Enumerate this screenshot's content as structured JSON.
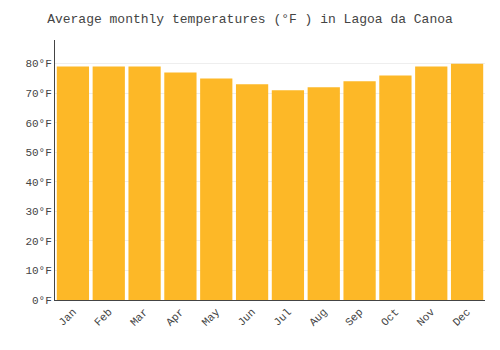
{
  "chart_data": {
    "type": "bar",
    "title": "Average monthly temperatures (°F ) in Lagoa da Canoa",
    "categories": [
      "Jan",
      "Feb",
      "Mar",
      "Apr",
      "May",
      "Jun",
      "Jul",
      "Aug",
      "Sep",
      "Oct",
      "Nov",
      "Dec"
    ],
    "values": [
      79,
      79,
      79,
      77,
      75,
      73,
      71,
      72,
      74,
      76,
      79,
      80
    ],
    "color": "#FDB827",
    "ylim": [
      0,
      88
    ],
    "yticks": [
      {
        "value": 0,
        "label": "0°F"
      },
      {
        "value": 10,
        "label": "10°F"
      },
      {
        "value": 20,
        "label": "20°F"
      },
      {
        "value": 30,
        "label": "30°F"
      },
      {
        "value": 40,
        "label": "40°F"
      },
      {
        "value": 50,
        "label": "50°F"
      },
      {
        "value": 60,
        "label": "60°F"
      },
      {
        "value": 70,
        "label": "70°F"
      },
      {
        "value": 80,
        "label": "80°F"
      }
    ],
    "grid": true
  }
}
